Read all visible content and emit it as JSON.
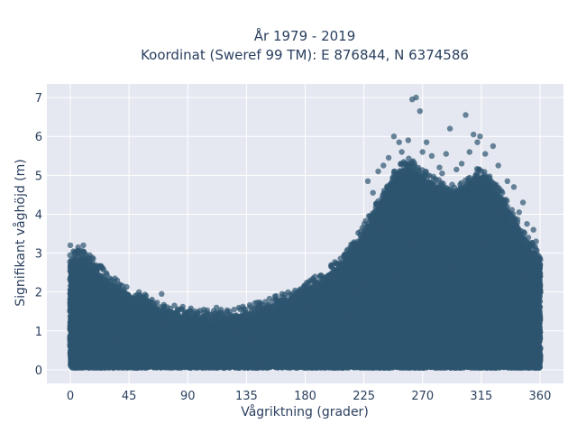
{
  "chart_data": {
    "type": "scatter",
    "title": {
      "line1": "År 1979 - 2019",
      "line2": "Koordinat (Sweref 99 TM): E 876844, N 6374586"
    },
    "xlabel": "Vågriktning (grader)",
    "ylabel": "Signifikant våghöjd (m)",
    "xlim": [
      -18,
      378
    ],
    "ylim": [
      -0.35,
      7.35
    ],
    "x_ticks": [
      0,
      45,
      90,
      135,
      180,
      225,
      270,
      315,
      360
    ],
    "y_ticks": [
      0,
      1,
      2,
      3,
      4,
      5,
      6,
      7
    ],
    "grid": true,
    "legend": "none",
    "colors": {
      "marker": "#2e5570",
      "plot_background": "#e5e8f0",
      "gridline": "#ffffff",
      "text": "#2a3f5f"
    },
    "series": [
      {
        "envelope": {
          "x": [
            0,
            10,
            20,
            30,
            45,
            60,
            75,
            90,
            105,
            120,
            135,
            150,
            165,
            180,
            195,
            210,
            225,
            240,
            250,
            260,
            270,
            280,
            290,
            300,
            310,
            315,
            320,
            330,
            340,
            350,
            360
          ],
          "y_max": [
            2.7,
            2.75,
            2.45,
            2.1,
            1.75,
            1.55,
            1.35,
            1.25,
            1.2,
            1.2,
            1.3,
            1.45,
            1.65,
            1.9,
            2.2,
            2.65,
            3.4,
            4.3,
            4.9,
            5.1,
            4.8,
            4.6,
            4.4,
            4.5,
            4.8,
            4.85,
            4.7,
            4.3,
            3.7,
            3.1,
            2.7
          ],
          "y_min": [
            0.05,
            0.05,
            0.05,
            0.05,
            0.05,
            0.05,
            0.05,
            0.05,
            0.05,
            0.05,
            0.05,
            0.05,
            0.05,
            0.05,
            0.05,
            0.05,
            0.05,
            0.05,
            0.05,
            0.05,
            0.05,
            0.05,
            0.05,
            0.05,
            0.05,
            0.05,
            0.05,
            0.05,
            0.05,
            0.05,
            0.05
          ]
        },
        "outliers": [
          {
            "x": 0,
            "y": 3.2
          },
          {
            "x": 6,
            "y": 3.15
          },
          {
            "x": 10,
            "y": 3.2
          },
          {
            "x": 3,
            "y": 2.9
          },
          {
            "x": 16,
            "y": 2.7
          },
          {
            "x": 28,
            "y": 2.45
          },
          {
            "x": 40,
            "y": 2.0
          },
          {
            "x": 58,
            "y": 1.9
          },
          {
            "x": 70,
            "y": 1.95
          },
          {
            "x": 112,
            "y": 1.6
          },
          {
            "x": 158,
            "y": 1.8
          },
          {
            "x": 170,
            "y": 1.95
          },
          {
            "x": 186,
            "y": 2.35
          },
          {
            "x": 200,
            "y": 2.65
          },
          {
            "x": 210,
            "y": 2.95
          },
          {
            "x": 228,
            "y": 4.85
          },
          {
            "x": 232,
            "y": 4.55
          },
          {
            "x": 236,
            "y": 5.1
          },
          {
            "x": 244,
            "y": 5.45
          },
          {
            "x": 248,
            "y": 6.0
          },
          {
            "x": 252,
            "y": 5.85
          },
          {
            "x": 254,
            "y": 5.6
          },
          {
            "x": 259,
            "y": 5.9
          },
          {
            "x": 262,
            "y": 6.95
          },
          {
            "x": 265,
            "y": 7.0
          },
          {
            "x": 268,
            "y": 6.65
          },
          {
            "x": 270,
            "y": 5.6
          },
          {
            "x": 273,
            "y": 5.85
          },
          {
            "x": 277,
            "y": 5.5
          },
          {
            "x": 283,
            "y": 5.2
          },
          {
            "x": 288,
            "y": 5.55
          },
          {
            "x": 291,
            "y": 6.2
          },
          {
            "x": 296,
            "y": 5.15
          },
          {
            "x": 300,
            "y": 5.3
          },
          {
            "x": 303,
            "y": 6.55
          },
          {
            "x": 306,
            "y": 5.6
          },
          {
            "x": 309,
            "y": 6.05
          },
          {
            "x": 312,
            "y": 5.85
          },
          {
            "x": 314,
            "y": 6.0
          },
          {
            "x": 318,
            "y": 5.55
          },
          {
            "x": 324,
            "y": 5.75
          },
          {
            "x": 328,
            "y": 5.25
          },
          {
            "x": 335,
            "y": 4.85
          },
          {
            "x": 340,
            "y": 4.7
          },
          {
            "x": 344,
            "y": 4.05
          },
          {
            "x": 350,
            "y": 3.75
          },
          {
            "x": 355,
            "y": 3.6
          },
          {
            "x": 357,
            "y": 3.3
          },
          {
            "x": 347,
            "y": 4.3
          },
          {
            "x": 240,
            "y": 5.25
          },
          {
            "x": 257,
            "y": 5.3
          },
          {
            "x": 285,
            "y": 5.05
          }
        ]
      }
    ]
  }
}
